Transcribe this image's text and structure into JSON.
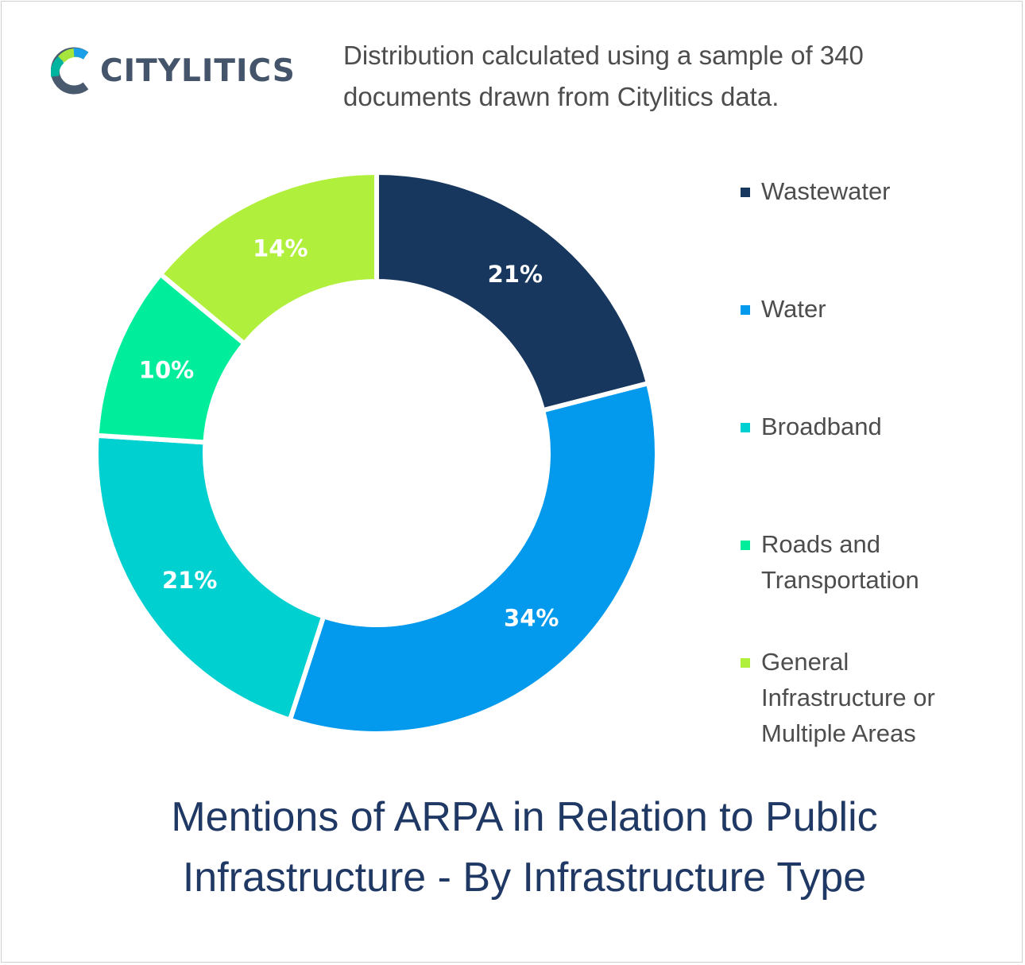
{
  "logo": {
    "text": "CITYLITICS",
    "colors": {
      "grey": "#4a5a6e",
      "teal": "#00b4a0",
      "green": "#a6e63c",
      "blue": "#1aa0e8"
    }
  },
  "subtitle": {
    "line1": "Distribution calculated using a sample of 340",
    "line2": "documents drawn from Citylitics data."
  },
  "title": {
    "line1": "Mentions of ARPA in Relation to Public",
    "line2": "Infrastructure - By Infrastructure Type"
  },
  "chart_data": {
    "type": "pie",
    "hole": true,
    "title": "Mentions of ARPA in Relation to Public Infrastructure - By Infrastructure Type",
    "legend_position": "right",
    "slices": [
      {
        "label": "Wastewater",
        "value": 21,
        "value_label": "21%",
        "color": "#17375e"
      },
      {
        "label": "Water",
        "value": 34,
        "value_label": "34%",
        "color": "#0399ed"
      },
      {
        "label": "Broadband",
        "value": 21,
        "value_label": "21%",
        "color": "#00d0d0"
      },
      {
        "label": "Roads and\nTransportation",
        "value": 10,
        "value_label": "10%",
        "color": "#00ee9c"
      },
      {
        "label": "General\nInfrastructure or\nMultiple Areas",
        "value": 14,
        "value_label": "14%",
        "color": "#b0f03c"
      }
    ]
  }
}
